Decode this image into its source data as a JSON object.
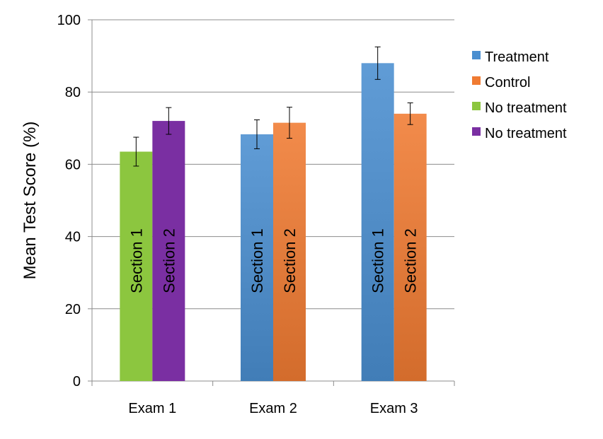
{
  "chart_data": {
    "type": "bar",
    "title": "",
    "xlabel": "",
    "ylabel": "Mean Test Score (%)",
    "ylim": [
      0,
      100
    ],
    "yticks": [
      0,
      20,
      40,
      60,
      80,
      100
    ],
    "grid": true,
    "legend_position": "right",
    "categories": [
      "Exam 1",
      "Exam 2",
      "Exam 3"
    ],
    "legend": [
      {
        "name": "Treatment",
        "color": "#4a8ed0"
      },
      {
        "name": "Control",
        "color": "#f07b32"
      },
      {
        "name": "No treatment",
        "color": "#8cc63f"
      },
      {
        "name": "No treatment",
        "color": "#7a2fa2"
      }
    ],
    "bars": [
      {
        "category": "Exam 1",
        "label": "Section 1",
        "value": 63.5,
        "error": 4,
        "group": "No treatment",
        "color": "#8cc63f",
        "gradient": false
      },
      {
        "category": "Exam 1",
        "label": "Section 2",
        "value": 72,
        "error": 3.7,
        "group": "No treatment",
        "color": "#7a2fa2",
        "gradient": false
      },
      {
        "category": "Exam 2",
        "label": "Section 1",
        "value": 68.3,
        "error": 4,
        "group": "Treatment",
        "color": "#4a8ed0",
        "gradient": true
      },
      {
        "category": "Exam 2",
        "label": "Section 2",
        "value": 71.5,
        "error": 4.3,
        "group": "Control",
        "color": "#f07b32",
        "gradient": true
      },
      {
        "category": "Exam 3",
        "label": "Section 1",
        "value": 88,
        "error": 4.5,
        "group": "Treatment",
        "color": "#4a8ed0",
        "gradient": true
      },
      {
        "category": "Exam 3",
        "label": "Section 2",
        "value": 74,
        "error": 3,
        "group": "Control",
        "color": "#f07b32",
        "gradient": true
      }
    ]
  }
}
